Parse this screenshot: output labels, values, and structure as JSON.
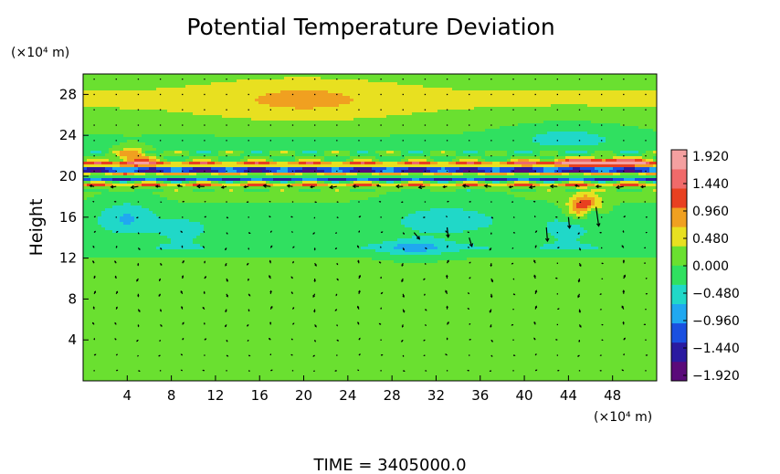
{
  "chart_data": {
    "type": "heatmap",
    "title": "Potential Temperature Deviation",
    "ylabel": "Height",
    "xlabel": "",
    "x_unit": "(×10⁴ m)",
    "y_unit": "(×10⁴ m)",
    "xlim": [
      0,
      52
    ],
    "ylim": [
      0,
      30
    ],
    "x_ticks": [
      "4",
      "8",
      "12",
      "16",
      "20",
      "24",
      "28",
      "32",
      "36",
      "40",
      "44",
      "48"
    ],
    "y_ticks": [
      "4",
      "8",
      "12",
      "16",
      "20",
      "24",
      "28"
    ],
    "colorbar": {
      "labels": [
        "1.920",
        "1.440",
        "0.960",
        "0.480",
        "0.000",
        "−0.480",
        "−0.960",
        "−1.440",
        "−1.920"
      ],
      "range": [
        -2.2,
        2.2
      ],
      "colors": [
        "#5a0a7a",
        "#2a1aa0",
        "#1a50e0",
        "#20a8f0",
        "#20d8c8",
        "#30e060",
        "#6ae030",
        "#e8e020",
        "#f0a020",
        "#e84020",
        "#f06a6a",
        "#f4a0a0"
      ]
    },
    "field": {
      "background_value": 0.05,
      "bands": [
        {
          "y_center": 27.5,
          "half_width": 2.5,
          "value": 0.35
        },
        {
          "y_center": 23.2,
          "half_width": 1.3,
          "value": -0.15
        },
        {
          "y_center": 21.2,
          "half_width": 0.25,
          "value": 1.2
        },
        {
          "y_center": 20.6,
          "half_width": 0.3,
          "value": -1.9
        },
        {
          "y_center": 20.2,
          "half_width": 0.2,
          "value": 1.0
        },
        {
          "y_center": 19.7,
          "half_width": 0.25,
          "value": -1.4
        },
        {
          "y_center": 19.2,
          "half_width": 0.25,
          "value": 0.9
        },
        {
          "y_center": 15.5,
          "half_width": 1.5,
          "value": -0.25
        },
        {
          "y_center": 13.0,
          "half_width": 0.6,
          "value": -0.35
        },
        {
          "y_center": 11.0,
          "half_width": 0.4,
          "value": 0.3
        }
      ],
      "blobs": [
        {
          "x": 4,
          "y": 16,
          "rx": 2.5,
          "ry": 1.8,
          "value": -0.6
        },
        {
          "x": 9,
          "y": 14.5,
          "rx": 2.5,
          "ry": 1.2,
          "value": -0.45
        },
        {
          "x": 33,
          "y": 16,
          "rx": 5,
          "ry": 2.5,
          "value": -0.35
        },
        {
          "x": 45.5,
          "y": 17,
          "rx": 1.4,
          "ry": 1.2,
          "value": 1.6
        },
        {
          "x": 46,
          "y": 16.5,
          "rx": 0.8,
          "ry": 0.7,
          "value": -1.0
        },
        {
          "x": 44,
          "y": 14.5,
          "rx": 2.5,
          "ry": 1.5,
          "value": -0.4
        },
        {
          "x": 47,
          "y": 21.4,
          "rx": 5,
          "ry": 0.4,
          "value": 1.7
        },
        {
          "x": 4.5,
          "y": 21.8,
          "rx": 1.5,
          "ry": 1.0,
          "value": 1.1
        },
        {
          "x": 20,
          "y": 27.5,
          "rx": 8,
          "ry": 2.0,
          "value": 0.45
        },
        {
          "x": 44,
          "y": 24,
          "rx": 6,
          "ry": 1.6,
          "value": -0.45
        },
        {
          "x": 30,
          "y": 13,
          "rx": 3,
          "ry": 1.0,
          "value": -0.55
        }
      ]
    },
    "wind_vectors": {
      "x_spacing": 2,
      "y_spacing": 1.5,
      "strong_features": [
        {
          "x": 46.5,
          "y": 17,
          "u": 0.5,
          "v": -3.5
        },
        {
          "x": 42,
          "y": 15,
          "u": 0.2,
          "v": -2.5
        },
        {
          "x": 30,
          "y": 14.5,
          "u": 1.0,
          "v": -1.2
        },
        {
          "x": 33,
          "y": 15,
          "u": 0.2,
          "v": -1.8
        },
        {
          "x": 35,
          "y": 14,
          "u": 0.5,
          "v": -1.6
        },
        {
          "x": 44,
          "y": 16,
          "u": 0.2,
          "v": -2.0
        }
      ]
    },
    "annotation": "TIME  =  3405000.0"
  }
}
